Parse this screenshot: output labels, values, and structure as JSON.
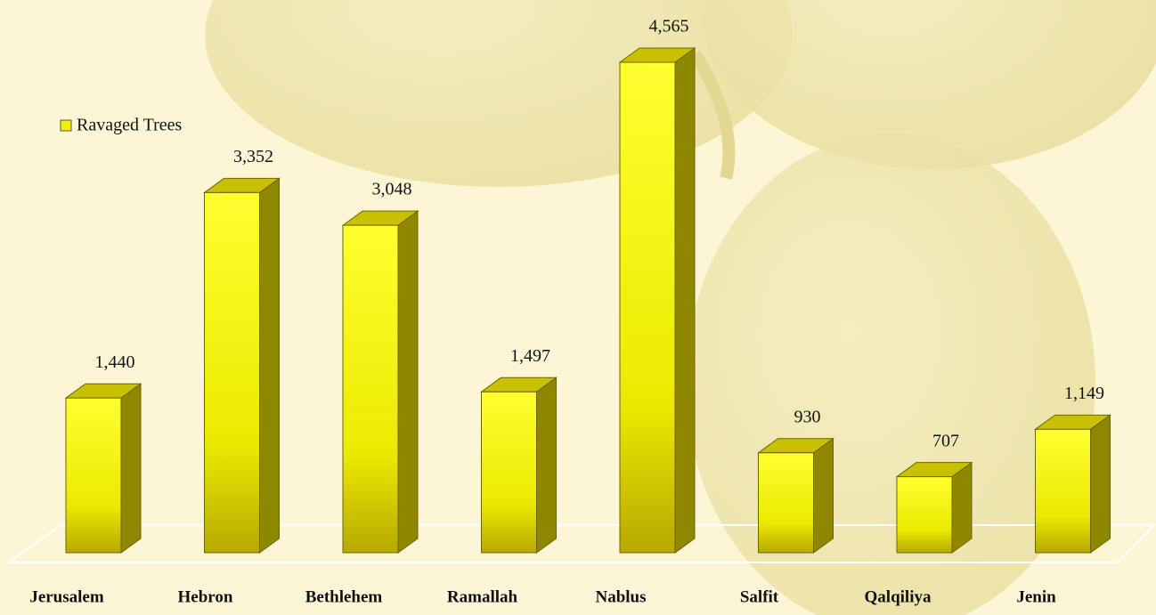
{
  "chart_data": {
    "type": "bar3d",
    "categories": [
      "Jerusalem",
      "Hebron",
      "Bethlehem",
      "Ramallah",
      "Nablus",
      "Salfit",
      "Qalqiliya",
      "Jenin"
    ],
    "series": [
      {
        "name": "Ravaged Trees",
        "color": "#f2f200",
        "values": [
          1440,
          3352,
          3048,
          1497,
          4565,
          930,
          707,
          1149
        ],
        "value_labels": [
          "1,440",
          "3,352",
          "3,048",
          "1,497",
          "4,565",
          "930",
          "707",
          "1,149"
        ]
      }
    ],
    "legend": "top-left"
  }
}
